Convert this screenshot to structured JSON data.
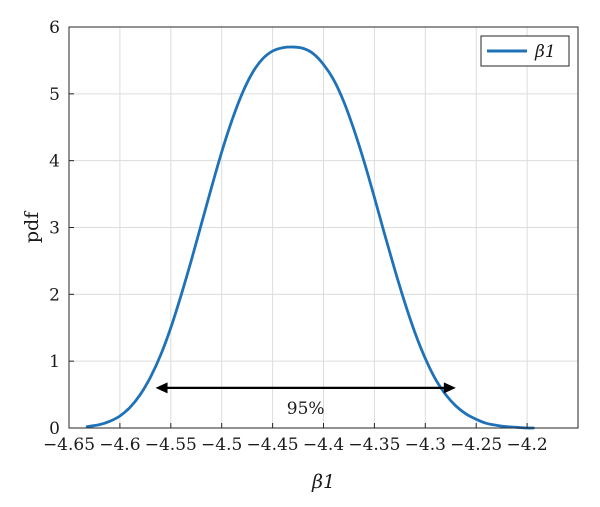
{
  "chart_data": {
    "type": "line",
    "title": "",
    "xlabel": "β1",
    "ylabel": "pdf",
    "xlim": [
      -4.65,
      -4.15
    ],
    "ylim": [
      0,
      6
    ],
    "xticks": [
      -4.65,
      -4.6,
      -4.55,
      -4.5,
      -4.45,
      -4.4,
      -4.35,
      -4.3,
      -4.25,
      -4.2
    ],
    "xtick_labels": [
      "−4.65",
      "−4.6",
      "−4.55",
      "−4.5",
      "−4.45",
      "−4.4",
      "−4.35",
      "−4.3",
      "−4.25",
      "−4.2"
    ],
    "yticks": [
      0,
      1,
      2,
      3,
      4,
      5,
      6
    ],
    "ytick_labels": [
      "0",
      "1",
      "2",
      "3",
      "4",
      "5",
      "6"
    ],
    "grid": true,
    "legend_position": "top-right",
    "series": [
      {
        "name": "β1",
        "color": "#1f72b8",
        "x": [
          -4.6322,
          -4.62,
          -4.61,
          -4.6,
          -4.59,
          -4.58,
          -4.57,
          -4.56,
          -4.55,
          -4.54,
          -4.53,
          -4.52,
          -4.51,
          -4.5,
          -4.49,
          -4.48,
          -4.47,
          -4.46,
          -4.45,
          -4.44,
          -4.43,
          -4.42,
          -4.41,
          -4.4,
          -4.39,
          -4.38,
          -4.37,
          -4.36,
          -4.35,
          -4.34,
          -4.33,
          -4.32,
          -4.31,
          -4.3,
          -4.29,
          -4.28,
          -4.27,
          -4.26,
          -4.25,
          -4.24,
          -4.23,
          -4.22,
          -4.21,
          -4.2,
          -4.1938
        ],
        "y": [
          0.02,
          0.05,
          0.1,
          0.18,
          0.31,
          0.5,
          0.76,
          1.09,
          1.5,
          1.98,
          2.5,
          3.05,
          3.6,
          4.13,
          4.6,
          5.0,
          5.31,
          5.52,
          5.64,
          5.69,
          5.7,
          5.68,
          5.6,
          5.44,
          5.21,
          4.88,
          4.46,
          3.98,
          3.45,
          2.9,
          2.37,
          1.87,
          1.42,
          1.04,
          0.73,
          0.5,
          0.33,
          0.21,
          0.13,
          0.07,
          0.04,
          0.02,
          0.01,
          0.0,
          0.0
        ]
      }
    ],
    "annotations": [
      {
        "type": "double-arrow",
        "x1": -4.565,
        "x2": -4.27,
        "y": 0.6,
        "label": "95%",
        "color": "#000000"
      }
    ]
  }
}
